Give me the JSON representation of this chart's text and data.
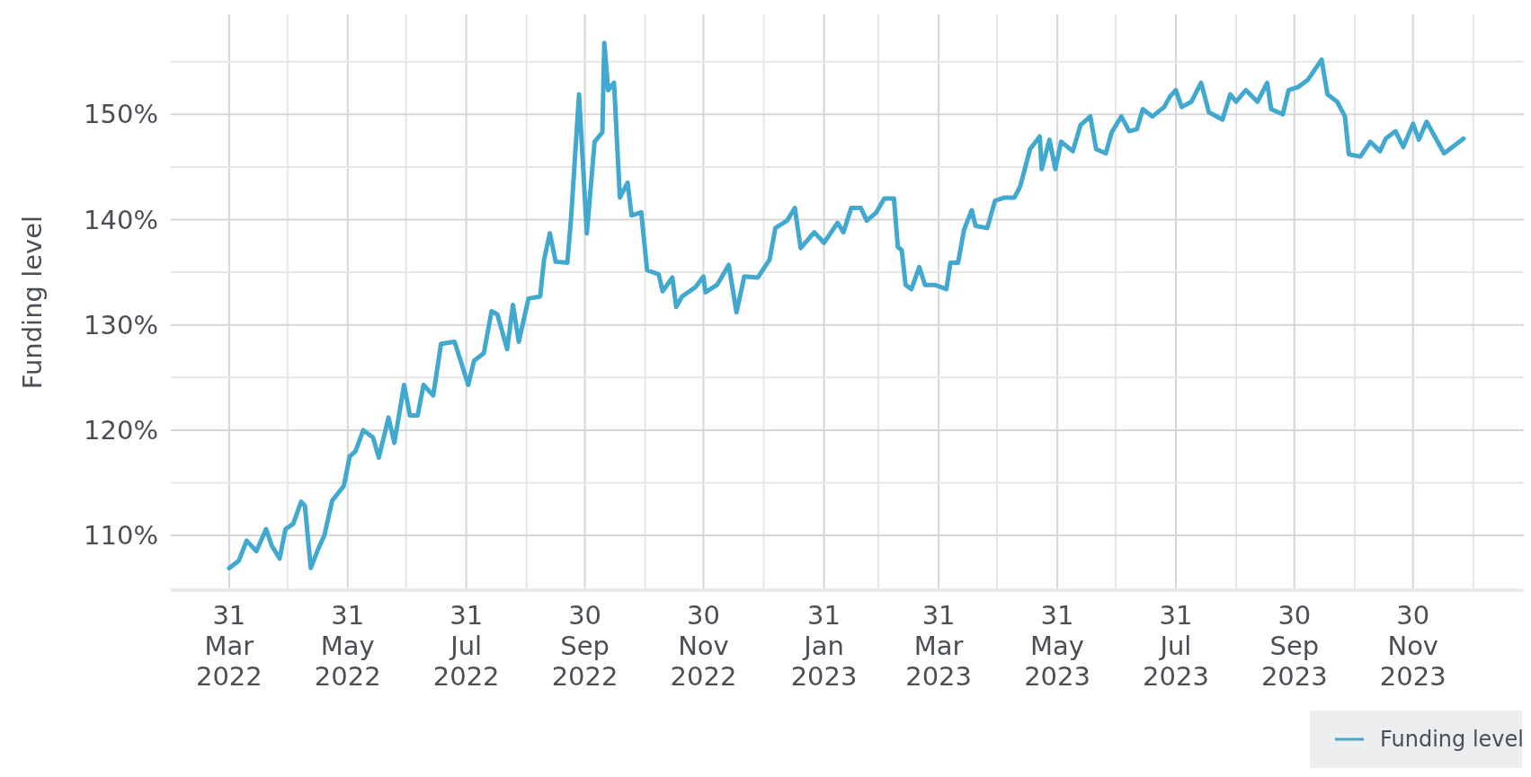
{
  "chart_data": {
    "type": "line",
    "ylabel": "Funding level",
    "x": [
      "2022-03-31",
      "2022-04-05",
      "2022-04-09",
      "2022-04-14",
      "2022-04-19",
      "2022-04-22",
      "2022-04-26",
      "2022-04-29",
      "2022-05-03",
      "2022-05-07",
      "2022-05-09",
      "2022-05-12",
      "2022-05-16",
      "2022-05-19",
      "2022-05-23",
      "2022-05-29",
      "2022-06-01",
      "2022-06-04",
      "2022-06-08",
      "2022-06-13",
      "2022-06-16",
      "2022-06-21",
      "2022-06-24",
      "2022-06-29",
      "2022-07-02",
      "2022-07-06",
      "2022-07-09",
      "2022-07-14",
      "2022-07-18",
      "2022-07-25",
      "2022-08-01",
      "2022-08-04",
      "2022-08-09",
      "2022-08-13",
      "2022-08-16",
      "2022-08-21",
      "2022-08-24",
      "2022-08-27",
      "2022-09-01",
      "2022-09-07",
      "2022-09-09",
      "2022-09-12",
      "2022-09-15",
      "2022-09-21",
      "2022-09-23",
      "2022-09-27",
      "2022-10-01",
      "2022-10-05",
      "2022-10-09",
      "2022-10-10",
      "2022-10-12",
      "2022-10-15",
      "2022-10-18",
      "2022-10-22",
      "2022-10-24",
      "2022-10-29",
      "2022-11-01",
      "2022-11-07",
      "2022-11-09",
      "2022-11-14",
      "2022-11-16",
      "2022-11-19",
      "2022-11-26",
      "2022-11-30",
      "2022-12-01",
      "2022-12-07",
      "2022-12-13",
      "2022-12-17",
      "2022-12-21",
      "2022-12-28",
      "2023-01-03",
      "2023-01-06",
      "2023-01-12",
      "2023-01-16",
      "2023-01-19",
      "2023-01-26",
      "2023-01-31",
      "2023-02-07",
      "2023-02-10",
      "2023-02-14",
      "2023-02-19",
      "2023-02-22",
      "2023-02-27",
      "2023-03-03",
      "2023-03-08",
      "2023-03-10",
      "2023-03-12",
      "2023-03-14",
      "2023-03-17",
      "2023-03-21",
      "2023-03-24",
      "2023-03-29",
      "2023-04-04",
      "2023-04-06",
      "2023-04-10",
      "2023-04-13",
      "2023-04-17",
      "2023-04-19",
      "2023-04-25",
      "2023-04-29",
      "2023-05-04",
      "2023-05-09",
      "2023-05-12",
      "2023-05-17",
      "2023-05-22",
      "2023-05-23",
      "2023-05-27",
      "2023-05-30",
      "2023-06-02",
      "2023-06-08",
      "2023-06-12",
      "2023-06-17",
      "2023-06-20",
      "2023-06-25",
      "2023-06-28",
      "2023-07-03",
      "2023-07-07",
      "2023-07-11",
      "2023-07-14",
      "2023-07-19",
      "2023-07-25",
      "2023-07-28",
      "2023-07-31",
      "2023-08-03",
      "2023-08-08",
      "2023-08-13",
      "2023-08-17",
      "2023-08-24",
      "2023-08-28",
      "2023-08-31",
      "2023-09-05",
      "2023-09-11",
      "2023-09-16",
      "2023-09-18",
      "2023-09-24",
      "2023-09-27",
      "2023-10-02",
      "2023-10-07",
      "2023-10-14",
      "2023-10-17",
      "2023-10-22",
      "2023-10-26",
      "2023-10-28",
      "2023-11-03",
      "2023-11-08",
      "2023-11-13",
      "2023-11-16",
      "2023-11-21",
      "2023-11-25",
      "2023-11-30",
      "2023-12-03",
      "2023-12-07",
      "2023-12-16",
      "2023-12-21",
      "2023-12-26"
    ],
    "series": [
      {
        "name": "Funding level",
        "color": "#41a8cf",
        "values": [
          106.9,
          107.6,
          109.5,
          108.5,
          110.6,
          109.0,
          107.8,
          110.6,
          111.1,
          113.2,
          112.8,
          106.9,
          108.8,
          110.0,
          113.3,
          114.7,
          117.5,
          118.0,
          120.0,
          119.3,
          117.4,
          121.2,
          118.8,
          124.3,
          121.4,
          121.4,
          124.3,
          123.3,
          128.2,
          128.4,
          124.3,
          126.6,
          127.3,
          131.3,
          131.0,
          127.7,
          131.9,
          128.4,
          132.5,
          132.7,
          136.2,
          138.7,
          136.0,
          135.9,
          140.4,
          151.9,
          138.7,
          147.4,
          148.3,
          156.8,
          152.3,
          153.0,
          142.1,
          143.5,
          140.4,
          140.7,
          135.2,
          134.8,
          133.2,
          134.5,
          131.7,
          132.7,
          133.6,
          134.6,
          133.1,
          133.8,
          135.7,
          131.2,
          134.6,
          134.5,
          136.2,
          139.2,
          139.9,
          141.1,
          137.3,
          138.8,
          137.8,
          139.7,
          138.8,
          141.1,
          141.1,
          139.9,
          140.7,
          142.0,
          142.0,
          137.4,
          137.1,
          133.8,
          133.4,
          135.5,
          133.8,
          133.8,
          133.4,
          135.9,
          135.9,
          139.0,
          140.9,
          139.4,
          139.2,
          141.8,
          142.1,
          142.1,
          143.2,
          146.7,
          147.9,
          144.8,
          147.6,
          144.8,
          147.4,
          146.5,
          149.0,
          149.8,
          146.7,
          146.3,
          148.3,
          149.8,
          148.4,
          148.6,
          150.5,
          149.8,
          150.7,
          151.7,
          152.3,
          150.7,
          151.2,
          153.0,
          150.2,
          149.5,
          151.9,
          151.2,
          152.3,
          151.2,
          153.0,
          150.5,
          150.0,
          152.3,
          152.6,
          153.3,
          155.2,
          151.9,
          151.2,
          149.8,
          146.2,
          146.0,
          147.4,
          146.5,
          147.7,
          148.4,
          146.9,
          149.1,
          147.6,
          149.3,
          146.3,
          147.0,
          147.7
        ]
      }
    ],
    "xlim": [
      "2022-03-01",
      "2024-01-26"
    ],
    "xticks": [
      {
        "value": "2022-03-31",
        "label": "31 Mar 2022"
      },
      {
        "value": "2022-04-30",
        "label": null
      },
      {
        "value": "2022-05-31",
        "label": "31 May 2022"
      },
      {
        "value": "2022-06-30",
        "label": null
      },
      {
        "value": "2022-07-31",
        "label": "31 Jul 2022"
      },
      {
        "value": "2022-08-31",
        "label": null
      },
      {
        "value": "2022-09-30",
        "label": "30 Sep 2022"
      },
      {
        "value": "2022-10-31",
        "label": null
      },
      {
        "value": "2022-11-30",
        "label": "30 Nov 2022"
      },
      {
        "value": "2022-12-31",
        "label": null
      },
      {
        "value": "2023-01-31",
        "label": "31 Jan 2023"
      },
      {
        "value": "2023-02-28",
        "label": null
      },
      {
        "value": "2023-03-31",
        "label": "31 Mar 2023"
      },
      {
        "value": "2023-04-30",
        "label": null
      },
      {
        "value": "2023-05-31",
        "label": "31 May 2023"
      },
      {
        "value": "2023-06-30",
        "label": null
      },
      {
        "value": "2023-07-31",
        "label": "31 Jul 2023"
      },
      {
        "value": "2023-08-31",
        "label": null
      },
      {
        "value": "2023-09-30",
        "label": "30 Sep 2023"
      },
      {
        "value": "2023-10-31",
        "label": null
      },
      {
        "value": "2023-11-30",
        "label": "30 Nov 2023"
      },
      {
        "value": "2023-12-31",
        "label": null
      }
    ],
    "ylim": [
      104.8,
      159.5
    ],
    "yticks": [
      {
        "value": 110,
        "label": "110%"
      },
      {
        "value": 115,
        "label": null
      },
      {
        "value": 120,
        "label": "120%"
      },
      {
        "value": 125,
        "label": null
      },
      {
        "value": 130,
        "label": "130%"
      },
      {
        "value": 135,
        "label": null
      },
      {
        "value": 140,
        "label": "140%"
      },
      {
        "value": 145,
        "label": null
      },
      {
        "value": 150,
        "label": "150%"
      },
      {
        "value": 155,
        "label": null
      }
    ],
    "grid": true,
    "legend": "bottom right",
    "marker": "none",
    "line_style": "solid"
  }
}
